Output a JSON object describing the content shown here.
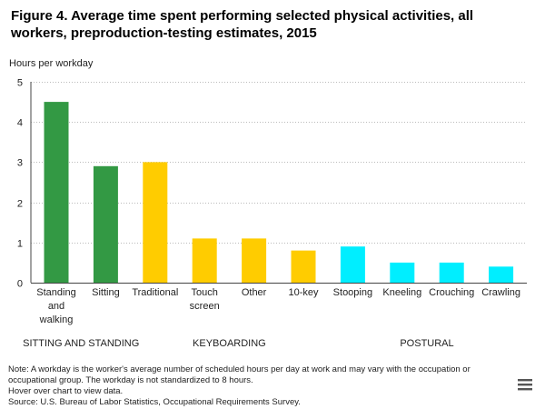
{
  "title": "Figure 4. Average time spent performing selected physical activities, all workers, preproduction-testing estimates, 2015",
  "notes": {
    "line1": "Note: A workday is the worker's average number of scheduled hours per day at work and may vary with the occupation or",
    "line2": "occupational group. The workday is not standardized to 8 hours.",
    "line3": "Hover over chart to view data.",
    "line4": "Source: U.S. Bureau of Labor Statistics, Occupational Requirements Survey."
  },
  "menu": {
    "icon": "hamburger-menu-icon"
  },
  "chart_data": {
    "type": "bar",
    "ylabel": "Hours per workday",
    "xlabel": "",
    "ylim": [
      0,
      5
    ],
    "yticks": [
      0,
      1,
      2,
      3,
      4,
      5
    ],
    "grid": true,
    "categories": [
      {
        "label": [
          "Standing",
          "and",
          "walking"
        ],
        "value": 4.5,
        "group": 0
      },
      {
        "label": [
          "Sitting"
        ],
        "value": 2.9,
        "group": 0
      },
      {
        "label": [
          "Traditional"
        ],
        "value": 3.0,
        "group": 1
      },
      {
        "label": [
          "Touch",
          "screen"
        ],
        "value": 1.1,
        "group": 1
      },
      {
        "label": [
          "Other"
        ],
        "value": 1.1,
        "group": 1
      },
      {
        "label": [
          "10-key"
        ],
        "value": 0.8,
        "group": 1
      },
      {
        "label": [
          "Stooping"
        ],
        "value": 0.9,
        "group": 2
      },
      {
        "label": [
          "Kneeling"
        ],
        "value": 0.5,
        "group": 2
      },
      {
        "label": [
          "Crouching"
        ],
        "value": 0.5,
        "group": 2
      },
      {
        "label": [
          "Crawling"
        ],
        "value": 0.4,
        "group": 2
      }
    ],
    "groups": [
      {
        "name": "SITTING AND STANDING",
        "color": "#339944"
      },
      {
        "name": "KEYBOARDING",
        "color": "#ffcc00"
      },
      {
        "name": "POSTURAL",
        "color": "#00eeff"
      }
    ]
  }
}
